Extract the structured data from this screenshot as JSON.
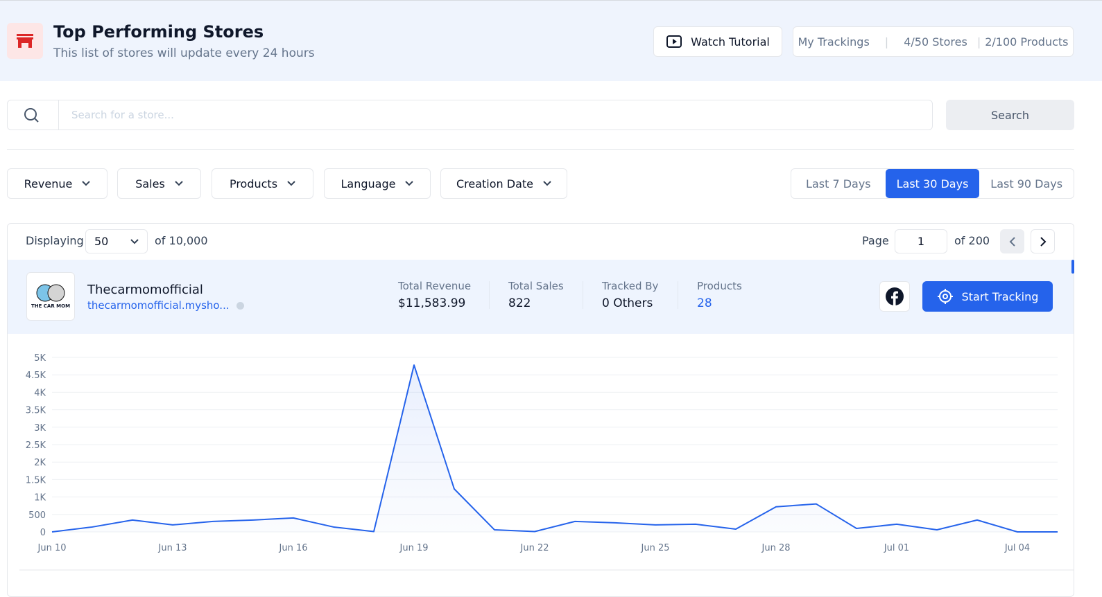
{
  "header": {
    "title": "Top Performing Stores",
    "subtitle": "This list of stores will update every 24 hours",
    "watch_tutorial": "Watch Tutorial",
    "my_trackings": "My Trackings",
    "stores_quota": "4/50 Stores",
    "products_quota": "2/100 Products"
  },
  "search": {
    "placeholder": "Search for a store...",
    "button": "Search"
  },
  "filters": [
    "Revenue",
    "Sales",
    "Products",
    "Language",
    "Creation Date"
  ],
  "date_ranges": {
    "options": [
      "Last 7 Days",
      "Last 30 Days",
      "Last 90 Days"
    ],
    "selected": 1
  },
  "pagination": {
    "displaying_label": "Displaying",
    "per_page": "50",
    "total": "of 10,000",
    "page_label": "Page",
    "page": "1",
    "page_total": "of 200"
  },
  "store": {
    "logo_text": "THE CAR MOM",
    "name": "Thecarmomofficial",
    "url": "thecarmomofficial.mysho...",
    "stats": [
      {
        "label": "Total Revenue",
        "value": "$11,583.99"
      },
      {
        "label": "Total Sales",
        "value": "822"
      },
      {
        "label": "Tracked By",
        "value": "0 Others"
      },
      {
        "label": "Products",
        "value": "28"
      }
    ],
    "button": "Start Tracking"
  },
  "chart_data": {
    "type": "area",
    "color": "#2563eb",
    "grid": true,
    "categories": [
      "Jun 10",
      null,
      null,
      "Jun 13",
      null,
      null,
      "Jun 16",
      null,
      null,
      "Jun 19",
      null,
      null,
      "Jun 22",
      null,
      null,
      "Jun 25",
      null,
      null,
      "Jun 28",
      null,
      null,
      "Jul 01",
      null,
      null,
      "Jul 04",
      null
    ],
    "values": [
      0,
      140,
      340,
      200,
      300,
      340,
      400,
      140,
      10,
      4780,
      1230,
      60,
      10,
      300,
      260,
      200,
      220,
      80,
      720,
      800,
      100,
      220,
      60,
      340,
      0,
      0
    ],
    "ylim": [
      0,
      5000
    ],
    "yticks": [
      0,
      500,
      {
        "value": 1000,
        "label": "1K"
      },
      {
        "value": 1500,
        "label": "1.5K"
      },
      {
        "value": 2000,
        "label": "2K"
      },
      {
        "value": 2500,
        "label": "2.5K"
      },
      {
        "value": 3000,
        "label": "3K"
      },
      {
        "value": 3500,
        "label": "3.5K"
      },
      {
        "value": 4000,
        "label": "4K"
      },
      {
        "value": 4500,
        "label": "4.5K"
      },
      {
        "value": 5000,
        "label": "5K"
      }
    ]
  }
}
